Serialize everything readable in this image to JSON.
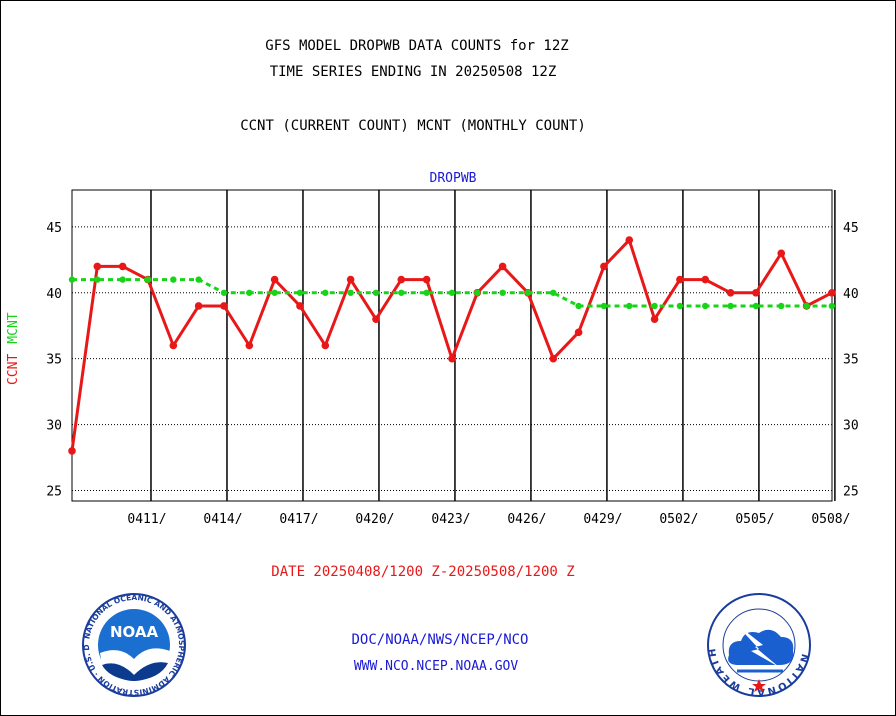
{
  "title_line1": "GFS MODEL DROPWB DATA COUNTS for 12Z",
  "title_line2": "TIME SERIES ENDING IN 20250508 12Z",
  "subtitle": "CCNT (CURRENT COUNT) MCNT (MONTHLY COUNT)",
  "panel_label": "DROPWB",
  "y_label_ccnt": "CCNT",
  "y_label_mcnt": "MCNT",
  "date_range": "DATE 20250408/1200 Z-20250508/1200 Z",
  "footer_line1": "DOC/NOAA/NWS/NCEP/NCO",
  "footer_line2": "WWW.NCO.NCEP.NOAA.GOV",
  "logos": {
    "left": {
      "icon": "noaa-logo-icon",
      "text": "NOAA",
      "ring_text": "NATIONAL OCEANIC AND ATMOSPHERIC ADMINISTRATION · U.S. DEPARTMENT OF COMMERCE"
    },
    "right": {
      "icon": "national-weather-service-logo-icon",
      "ring_text": "NATIONAL WEATHER SERVICE"
    }
  },
  "colors": {
    "ccnt": "#e81818",
    "mcnt": "#18d418",
    "label_blue": "#1a1ad4"
  },
  "chart_data": {
    "type": "line",
    "x_type": "day-index",
    "x": [
      0,
      1,
      2,
      3,
      4,
      5,
      6,
      7,
      8,
      9,
      10,
      11,
      12,
      13,
      14,
      15,
      16,
      17,
      18,
      19,
      20,
      21,
      22,
      23,
      24,
      25,
      26,
      27,
      28,
      29,
      30
    ],
    "x_tick_labels": [
      {
        "x": 3,
        "label": "0411/"
      },
      {
        "x": 6,
        "label": "0414/"
      },
      {
        "x": 9,
        "label": "0417/"
      },
      {
        "x": 12,
        "label": "0420/"
      },
      {
        "x": 15,
        "label": "0423/"
      },
      {
        "x": 18,
        "label": "0426/"
      },
      {
        "x": 21,
        "label": "0429/"
      },
      {
        "x": 24,
        "label": "0502/"
      },
      {
        "x": 27,
        "label": "0505/"
      },
      {
        "x": 30,
        "label": "0508/"
      }
    ],
    "series": [
      {
        "name": "CCNT",
        "color": "#e81818",
        "values": [
          28,
          42,
          42,
          41,
          36,
          39,
          39,
          36,
          41,
          39,
          36,
          41,
          38,
          41,
          41,
          35,
          40,
          42,
          40,
          35,
          37,
          42,
          44,
          38,
          41,
          41,
          40,
          40,
          43,
          39,
          40
        ]
      },
      {
        "name": "MCNT",
        "color": "#18d418",
        "values": [
          41,
          41,
          41,
          41,
          41,
          41,
          40,
          40,
          40,
          40,
          40,
          40,
          40,
          40,
          40,
          40,
          40,
          40,
          40,
          40,
          39,
          39,
          39,
          39,
          39,
          39,
          39,
          39,
          39,
          39,
          39
        ]
      }
    ],
    "y_ticks": [
      25,
      30,
      35,
      40,
      45
    ],
    "ylim": [
      24.2,
      47.8
    ],
    "grid": true
  }
}
